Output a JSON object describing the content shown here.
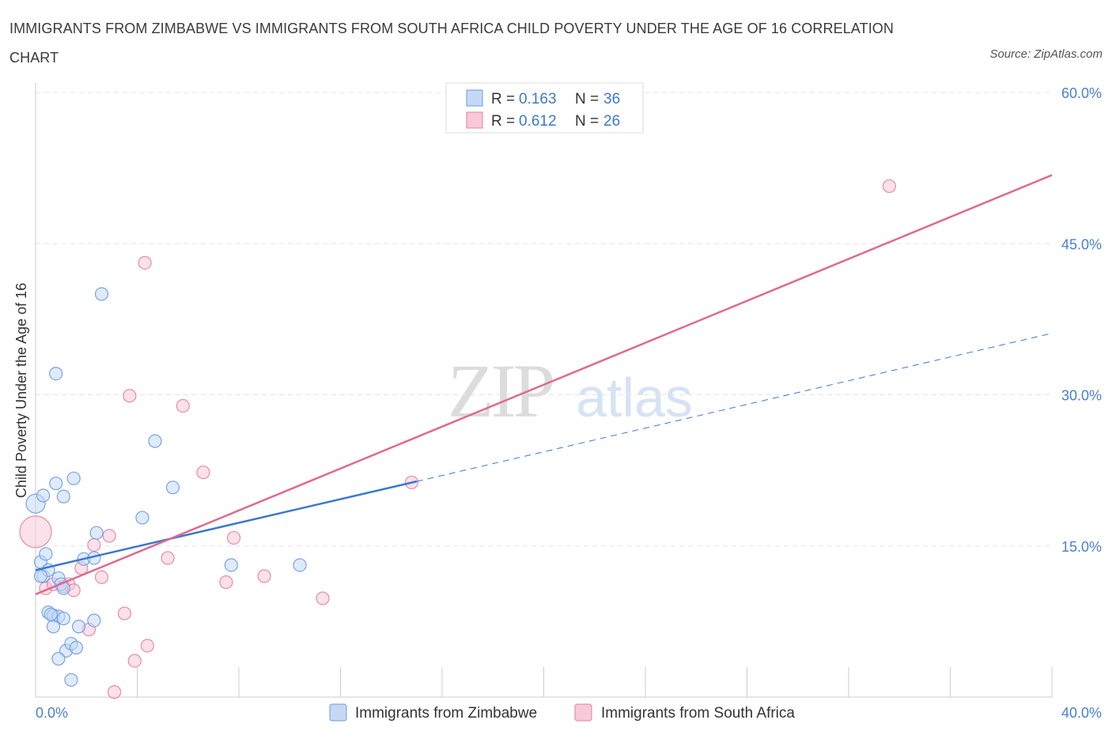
{
  "title": "IMMIGRANTS FROM ZIMBABWE VS IMMIGRANTS FROM SOUTH AFRICA CHILD POVERTY UNDER THE AGE OF 16 CORRELATION CHART",
  "source": "Source: ZipAtlas.com",
  "watermark": {
    "zip": "ZIP",
    "atlas": "atlas"
  },
  "chart_data": {
    "type": "scatter",
    "title": "IMMIGRANTS FROM ZIMBABWE VS IMMIGRANTS FROM SOUTH AFRICA CHILD POVERTY UNDER THE AGE OF 16 CORRELATION CHART",
    "xlabel": "",
    "ylabel": "Child Poverty Under the Age of 16",
    "xlim": [
      0,
      40
    ],
    "ylim": [
      0,
      60
    ],
    "x_tick_labels": {
      "left": "0.0%",
      "right": "40.0%"
    },
    "y_ticks": [
      {
        "value": 15,
        "label": "15.0%"
      },
      {
        "value": 30,
        "label": "30.0%"
      },
      {
        "value": 45,
        "label": "45.0%"
      },
      {
        "value": 60,
        "label": "60.0%"
      }
    ],
    "x_minor_ticks": [
      0,
      4,
      8,
      12,
      16,
      20,
      24,
      28,
      32,
      36,
      40
    ],
    "legend": {
      "position": "top-center",
      "rows": [
        {
          "r_label": "R = ",
          "r_value": "0.163",
          "n_label": "N = ",
          "n_value": "36"
        },
        {
          "r_label": "R = ",
          "r_value": "0.612",
          "n_label": "N = ",
          "n_value": "26"
        }
      ]
    },
    "series": [
      {
        "name": "Immigrants from Zimbabwe",
        "color": "#6a9be0",
        "fill": "#c5d9f5",
        "points": [
          [
            0.0,
            19.2
          ],
          [
            0.3,
            20.0
          ],
          [
            0.2,
            13.4
          ],
          [
            0.4,
            14.2
          ],
          [
            0.3,
            12.0
          ],
          [
            0.5,
            12.6
          ],
          [
            0.5,
            8.4
          ],
          [
            0.7,
            8.1
          ],
          [
            0.9,
            8.0
          ],
          [
            0.7,
            7.0
          ],
          [
            1.1,
            7.8
          ],
          [
            0.8,
            21.2
          ],
          [
            1.1,
            19.9
          ],
          [
            1.5,
            21.7
          ],
          [
            0.9,
            11.8
          ],
          [
            1.0,
            11.2
          ],
          [
            1.1,
            10.8
          ],
          [
            1.2,
            4.6
          ],
          [
            0.9,
            3.8
          ],
          [
            1.4,
            5.3
          ],
          [
            1.6,
            4.9
          ],
          [
            1.7,
            7.0
          ],
          [
            1.4,
            1.7
          ],
          [
            1.9,
            13.7
          ],
          [
            2.3,
            7.6
          ],
          [
            2.4,
            16.3
          ],
          [
            2.6,
            40.0
          ],
          [
            0.8,
            32.1
          ],
          [
            4.2,
            17.8
          ],
          [
            4.7,
            25.4
          ],
          [
            5.4,
            20.8
          ],
          [
            7.7,
            13.1
          ],
          [
            10.4,
            13.1
          ],
          [
            0.2,
            12.0
          ],
          [
            0.6,
            8.2
          ],
          [
            2.3,
            13.8
          ]
        ],
        "trend": {
          "x_start": 0.0,
          "y_start": 12.6,
          "x_solid_end": 15.0,
          "y_solid_end": 21.4,
          "x_end": 40.0,
          "y_end": 36.1
        }
      },
      {
        "name": "Immigrants from South Africa",
        "color": "#e57fa1",
        "fill": "#f8c9d8",
        "points": [
          [
            0.0,
            16.4
          ],
          [
            0.4,
            10.8
          ],
          [
            0.7,
            11.2
          ],
          [
            1.1,
            11.0
          ],
          [
            1.3,
            11.2
          ],
          [
            1.5,
            10.6
          ],
          [
            1.8,
            12.8
          ],
          [
            2.3,
            15.1
          ],
          [
            2.1,
            6.7
          ],
          [
            2.6,
            11.9
          ],
          [
            2.9,
            16.0
          ],
          [
            3.5,
            8.3
          ],
          [
            3.1,
            0.5
          ],
          [
            3.9,
            3.6
          ],
          [
            4.4,
            5.1
          ],
          [
            4.3,
            43.1
          ],
          [
            3.7,
            29.9
          ],
          [
            5.2,
            13.8
          ],
          [
            5.8,
            28.9
          ],
          [
            6.6,
            22.3
          ],
          [
            7.5,
            11.4
          ],
          [
            7.8,
            15.8
          ],
          [
            9.0,
            12.0
          ],
          [
            11.3,
            9.8
          ],
          [
            14.8,
            21.3
          ],
          [
            33.6,
            50.7
          ]
        ],
        "trend": {
          "x_start": 0.0,
          "y_start": 10.2,
          "x_end": 40.0,
          "y_end": 51.8
        }
      }
    ]
  },
  "bottom_legend": [
    {
      "label": "Immigrants from Zimbabwe"
    },
    {
      "label": "Immigrants from South Africa"
    }
  ]
}
